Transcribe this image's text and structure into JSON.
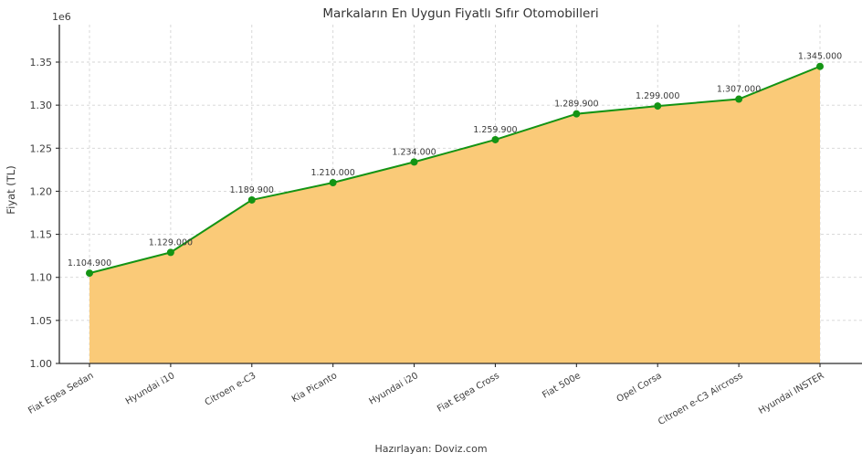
{
  "footer": "Hazırlayan: Doviz.com",
  "chart_data": {
    "type": "area",
    "title": "Markaların En Uygun Fiyatlı Sıfır Otomobilleri",
    "xlabel": "",
    "ylabel": "Fiyat (TL)",
    "y_offset_label": "1e6",
    "categories": [
      "Fiat Egea Sedan",
      "Hyundai i10",
      "Citroen e-C3",
      "Kia Picanto",
      "Hyundai i20",
      "Fiat Egea Cross",
      "Fiat 500e",
      "Opel Corsa",
      "Citroen e-C3 Aircross",
      "Hyundai INSTER"
    ],
    "values": [
      1104900,
      1129000,
      1189900,
      1210000,
      1234000,
      1259900,
      1289900,
      1299000,
      1307000,
      1345000
    ],
    "value_labels": [
      "1.104.900",
      "1.129.000",
      "1.189.900",
      "1.210.000",
      "1.234.000",
      "1.259.900",
      "1.289.900",
      "1.299.000",
      "1.307.000",
      "1.345.000"
    ],
    "yticks": [
      1000000,
      1050000,
      1100000,
      1150000,
      1200000,
      1250000,
      1300000,
      1350000
    ],
    "ytick_labels": [
      "1.00",
      "1.05",
      "1.10",
      "1.15",
      "1.20",
      "1.25",
      "1.30",
      "1.35"
    ],
    "ylim": [
      1000000,
      1393000
    ],
    "grid": true,
    "legend": "none",
    "colors": {
      "line": "#149414",
      "marker": "#149414",
      "fill": "#FACA78",
      "grid": "#d4d4d4",
      "spine": "#2b2b2b",
      "tick_text": "#3c3c3c",
      "point_label_text": "#3a3a3a"
    }
  }
}
